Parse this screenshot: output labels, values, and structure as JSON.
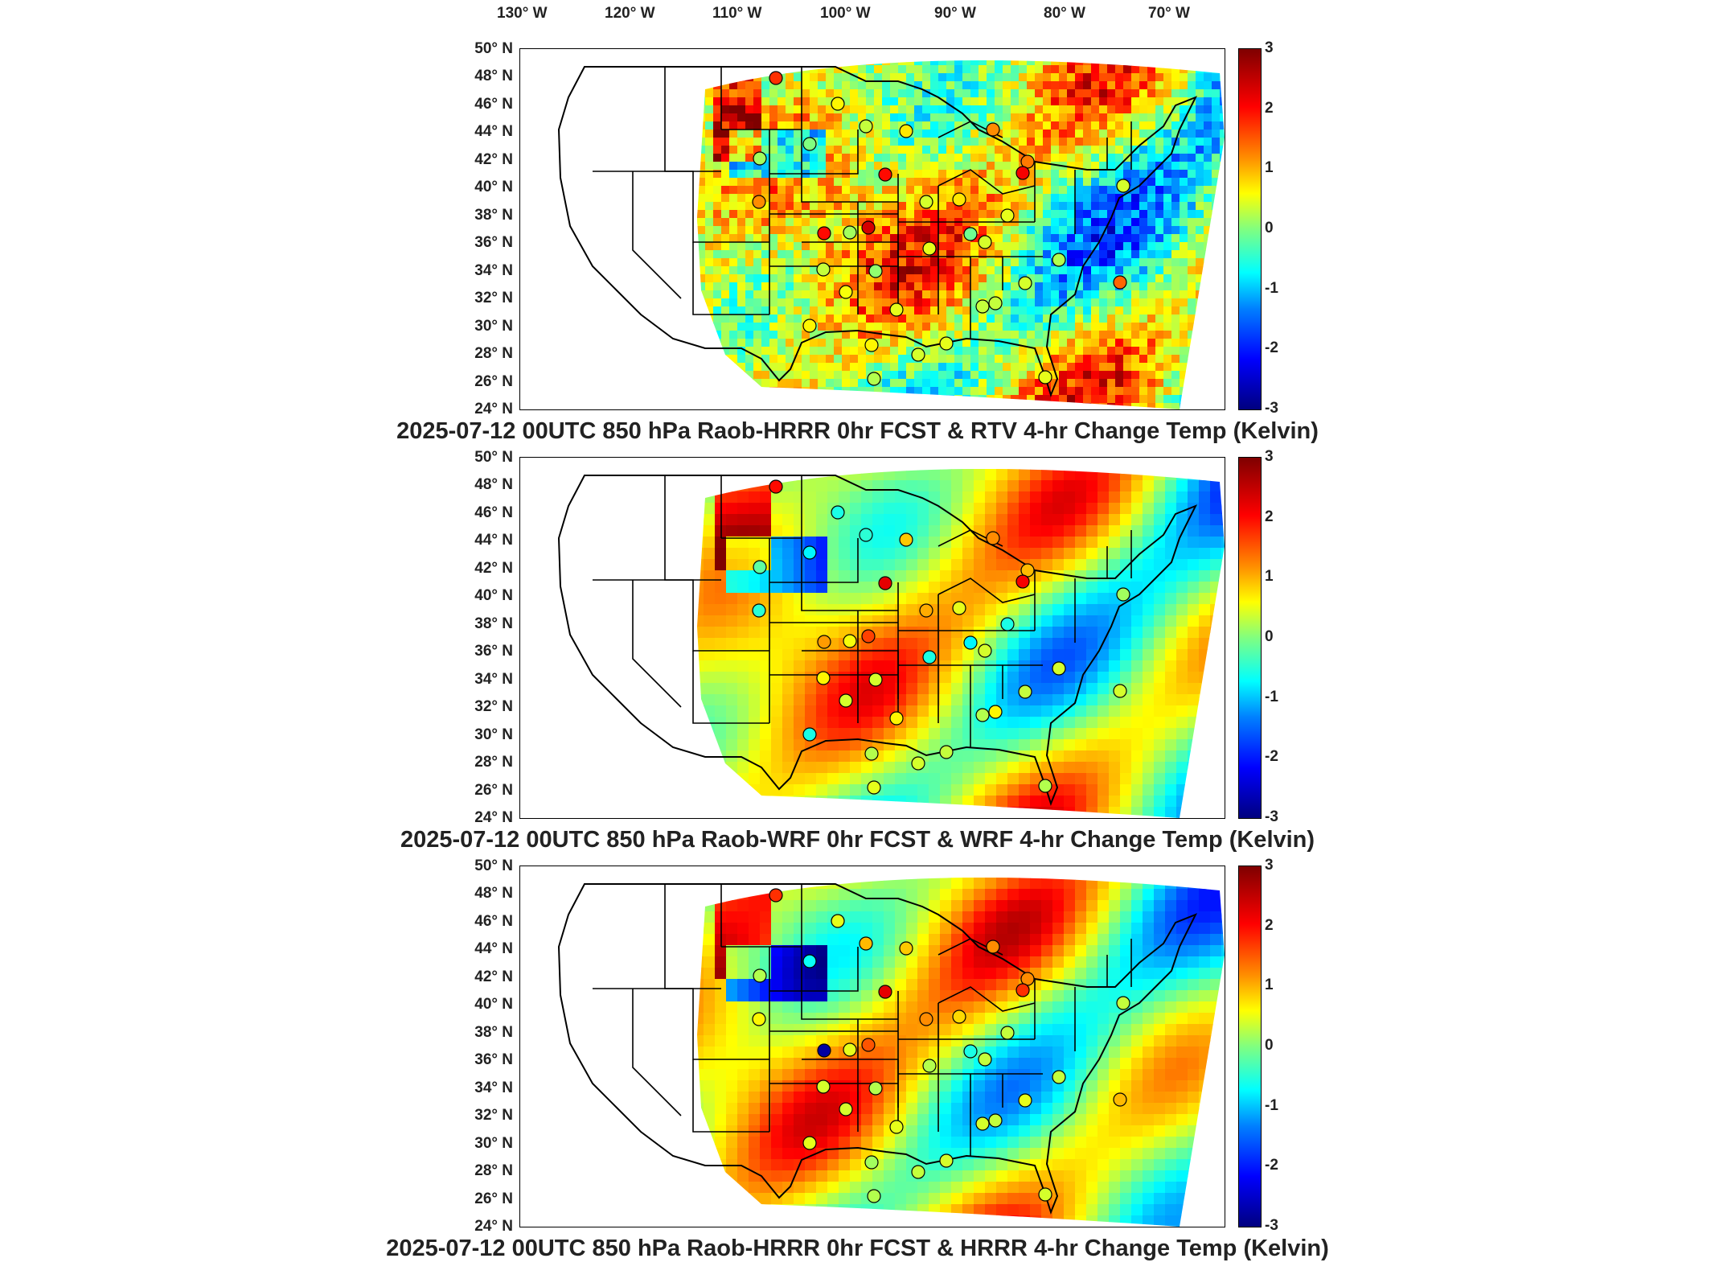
{
  "longitude_labels": [
    "130° W",
    "120° W",
    "110° W",
    "100° W",
    "90° W",
    "80° W",
    "70° W"
  ],
  "latitude_labels": [
    "50° N",
    "48° N",
    "46° N",
    "44° N",
    "42° N",
    "40° N",
    "38° N",
    "36° N",
    "34° N",
    "32° N",
    "30° N",
    "28° N",
    "26° N",
    "24° N"
  ],
  "colorbar_ticks": [
    "3",
    "2",
    "1",
    "0",
    "-1",
    "-2",
    "-3"
  ],
  "colorbar_range": [
    -3,
    3
  ],
  "colormap": [
    "#00007f",
    "#0000ff",
    "#0080ff",
    "#00ffff",
    "#80ff80",
    "#ffff00",
    "#ff8c00",
    "#ff0000",
    "#7f0000"
  ],
  "panels": [
    {
      "title": "2025-07-12 00UTC 850 hPa Raob-HRRR 0hr FCST & RTV 4-hr Change Temp (Kelvin)",
      "field_character": "noisy",
      "raob_values": [
        2.0,
        0.8,
        0.4,
        0.9,
        1.5,
        0.0,
        1.6,
        0.2,
        2.2,
        2.3,
        0.5,
        0.9,
        1.5,
        2.5,
        2.2,
        -0.1,
        0.6,
        0.4,
        0.1,
        0.5,
        0.6,
        0.5,
        0.3,
        0.7,
        0.6,
        0.4,
        0.8,
        0.8,
        1.7,
        0.4,
        0.5,
        0.6,
        0.3,
        0.6,
        0.5,
        0.2
      ]
    },
    {
      "title": "2025-07-12 00UTC 850 hPa Raob-WRF 0hr FCST & WRF 4-hr Change Temp (Kelvin)",
      "field_character": "smooth",
      "raob_values": [
        2.2,
        -0.6,
        -0.5,
        1.1,
        1.5,
        -0.8,
        1.2,
        -0.2,
        2.4,
        2.3,
        1.3,
        0.6,
        -0.5,
        1.9,
        1.4,
        -0.8,
        -0.6,
        0.8,
        0.5,
        0.4,
        -0.6,
        0.5,
        0.5,
        0.5,
        0.8,
        0.8,
        -0.6,
        0.3,
        0.5,
        0.3,
        0.5,
        0.4,
        0.6,
        0.3,
        0.2,
        0.7
      ]
    },
    {
      "title": "2025-07-12 00UTC 850 hPa Raob-HRRR 0hr FCST & HRRR 4-hr Change Temp (Kelvin)",
      "field_character": "smooth",
      "raob_values": [
        2.0,
        0.6,
        1.2,
        1.1,
        1.5,
        -0.7,
        1.5,
        0.3,
        2.4,
        2.0,
        1.5,
        1.0,
        0.8,
        1.8,
        -2.8,
        -0.6,
        0.4,
        0.5,
        0.3,
        0.6,
        0.3,
        0.4,
        0.4,
        0.5,
        0.6,
        0.4,
        0.6,
        0.2,
        1.2,
        0.5,
        0.4,
        0.5,
        0.3,
        0.5,
        0.4,
        0.6
      ]
    }
  ]
}
